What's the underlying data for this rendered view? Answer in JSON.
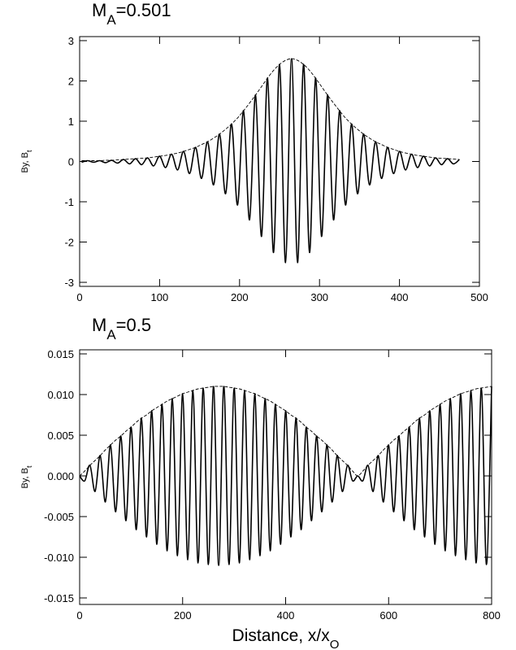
{
  "chart_data": [
    {
      "type": "line",
      "title": [
        "M",
        "A",
        "=0.501"
      ],
      "ylabel": [
        "By, B",
        "t"
      ],
      "x": [
        2.5,
        10,
        17.5,
        25,
        32.5,
        40,
        47.5,
        55,
        62.5,
        70,
        77.5,
        85,
        92.5,
        100,
        107.5,
        115,
        122.5,
        130,
        137.5,
        145,
        152.5,
        160,
        167.5,
        175,
        182.5,
        190,
        197.5,
        205,
        212.5,
        220,
        227.5,
        235,
        242.5,
        250,
        257.5,
        265,
        272.5,
        280,
        287.5,
        295,
        302.5,
        310,
        317.5,
        325,
        332.5,
        340,
        347.5,
        355,
        362.5,
        370,
        377.5,
        385,
        392.5,
        400,
        407.5,
        415,
        422.5,
        430,
        437.5,
        445,
        452.5,
        460,
        467.5,
        475
      ],
      "series": [
        {
          "color": "#000000",
          "dashed": false,
          "values": [
            -0.02,
            0.02,
            -0.02,
            0.02,
            -0.03,
            0.03,
            -0.04,
            0.05,
            -0.06,
            0.07,
            -0.08,
            0.09,
            -0.11,
            0.13,
            -0.15,
            0.18,
            -0.21,
            0.25,
            -0.3,
            0.35,
            -0.42,
            0.49,
            -0.58,
            0.68,
            -0.8,
            0.93,
            -1.08,
            1.26,
            -1.45,
            1.65,
            -1.86,
            2.07,
            -2.26,
            2.41,
            -2.51,
            2.55,
            -2.51,
            2.41,
            -2.26,
            2.07,
            -1.86,
            1.65,
            -1.45,
            1.26,
            -1.08,
            0.93,
            -0.8,
            0.68,
            -0.58,
            0.49,
            -0.42,
            0.35,
            -0.3,
            0.25,
            -0.21,
            0.18,
            -0.15,
            0.13,
            -0.11,
            0.09,
            -0.08,
            0.07,
            -0.06,
            0.05
          ]
        },
        {
          "color": "#000000",
          "dashed": true,
          "values": [
            0.02,
            0.02,
            0.02,
            0.02,
            0.03,
            0.03,
            0.04,
            0.05,
            0.06,
            0.07,
            0.08,
            0.09,
            0.11,
            0.13,
            0.15,
            0.18,
            0.21,
            0.25,
            0.3,
            0.35,
            0.42,
            0.49,
            0.58,
            0.68,
            0.8,
            0.93,
            1.08,
            1.26,
            1.45,
            1.65,
            1.86,
            2.07,
            2.26,
            2.41,
            2.51,
            2.55,
            2.51,
            2.41,
            2.26,
            2.07,
            1.86,
            1.65,
            1.45,
            1.26,
            1.08,
            0.93,
            0.8,
            0.68,
            0.58,
            0.49,
            0.42,
            0.35,
            0.3,
            0.25,
            0.21,
            0.18,
            0.15,
            0.13,
            0.11,
            0.09,
            0.08,
            0.07,
            0.06,
            0.05
          ]
        }
      ],
      "xlim": [
        0,
        500
      ],
      "xticks": [
        0,
        100,
        200,
        300,
        400,
        500
      ],
      "ylim": [
        -3.1,
        3.1
      ],
      "yticks": [
        -3,
        -2,
        -1,
        0,
        1,
        2,
        3
      ]
    },
    {
      "type": "line",
      "title": [
        "M",
        "A",
        "=0.5"
      ],
      "ylabel": [
        "By, B",
        "t"
      ],
      "xlabel": [
        "Distance, x/x",
        "O"
      ],
      "x": [
        0,
        10,
        20,
        30,
        40,
        50,
        60,
        70,
        80,
        90,
        100,
        110,
        120,
        130,
        140,
        150,
        160,
        170,
        180,
        190,
        200,
        210,
        220,
        230,
        240,
        250,
        260,
        270,
        280,
        290,
        300,
        310,
        320,
        330,
        340,
        350,
        360,
        370,
        380,
        390,
        400,
        410,
        420,
        430,
        440,
        450,
        460,
        470,
        480,
        490,
        500,
        510,
        520,
        530,
        540,
        550,
        560,
        570,
        580,
        590,
        600,
        610,
        620,
        630,
        640,
        650,
        660,
        670,
        680,
        690,
        700,
        710,
        720,
        730,
        740,
        750,
        760,
        770,
        780,
        790,
        800
      ],
      "series": [
        {
          "color": "#000000",
          "dashed": false,
          "values": [
            0,
            -0.0006,
            0.0013,
            -0.0019,
            0.0025,
            -0.0032,
            0.0038,
            -0.0044,
            0.0049,
            -0.0055,
            0.006,
            -0.0066,
            0.0071,
            -0.0075,
            0.008,
            -0.0084,
            0.0088,
            -0.0092,
            0.0095,
            -0.0098,
            0.0101,
            -0.0103,
            0.0105,
            -0.0107,
            0.0108,
            -0.0109,
            0.011,
            -0.011,
            0.011,
            -0.0109,
            0.0108,
            -0.0107,
            0.0105,
            -0.0103,
            0.0101,
            -0.0098,
            0.0095,
            -0.0092,
            0.0088,
            -0.0084,
            0.008,
            -0.0075,
            0.0071,
            -0.0066,
            0.006,
            -0.0055,
            0.0049,
            -0.0044,
            0.0038,
            -0.0032,
            0.0025,
            -0.0019,
            0.0013,
            -0.0006,
            0,
            -0.0006,
            0.0013,
            -0.0019,
            0.0025,
            -0.0032,
            0.0038,
            -0.0044,
            0.0049,
            -0.0055,
            0.006,
            -0.0066,
            0.0071,
            -0.0075,
            0.008,
            -0.0084,
            0.0088,
            -0.0092,
            0.0095,
            -0.0098,
            0.0101,
            -0.0103,
            0.0105,
            -0.0107,
            0.0108,
            -0.0109,
            0.011
          ]
        },
        {
          "color": "#000000",
          "dashed": true,
          "values": [
            0,
            0.0006,
            0.0013,
            0.0019,
            0.0025,
            0.0032,
            0.0038,
            0.0044,
            0.0049,
            0.0055,
            0.006,
            0.0066,
            0.0071,
            0.0075,
            0.008,
            0.0084,
            0.0088,
            0.0092,
            0.0095,
            0.0098,
            0.0101,
            0.0103,
            0.0105,
            0.0107,
            0.0108,
            0.0109,
            0.011,
            0.011,
            0.011,
            0.0109,
            0.0108,
            0.0107,
            0.0105,
            0.0103,
            0.0101,
            0.0098,
            0.0095,
            0.0092,
            0.0088,
            0.0084,
            0.008,
            0.0075,
            0.0071,
            0.0066,
            0.006,
            0.0055,
            0.0049,
            0.0044,
            0.0038,
            0.0032,
            0.0025,
            0.0019,
            0.0013,
            0.0006,
            0,
            0.0006,
            0.0013,
            0.0019,
            0.0025,
            0.0032,
            0.0038,
            0.0044,
            0.0049,
            0.0055,
            0.006,
            0.0066,
            0.0071,
            0.0075,
            0.008,
            0.0084,
            0.0088,
            0.0092,
            0.0095,
            0.0098,
            0.0101,
            0.0103,
            0.0105,
            0.0107,
            0.0108,
            0.0109,
            0.011
          ]
        }
      ],
      "xlim": [
        0,
        800
      ],
      "xticks": [
        0,
        200,
        400,
        600,
        800
      ],
      "ylim": [
        -0.0158,
        0.0155
      ],
      "yticks": [
        -0.015,
        {
          "value": -0.01,
          "label": "-0.010"
        },
        -0.005,
        {
          "value": 0,
          "label": "0.000"
        },
        0.005,
        {
          "value": 0.01,
          "label": "0.010"
        },
        0.015
      ]
    }
  ]
}
